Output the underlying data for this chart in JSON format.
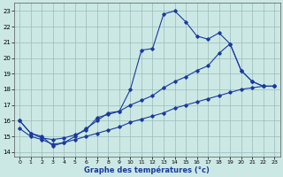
{
  "xlabel": "Graphe des températures (°c)",
  "background_color": "#cce8e4",
  "line_color": "#1a3a9e",
  "grid_color": "#99bbbb",
  "xlim": [
    -0.5,
    23.5
  ],
  "ylim": [
    13.7,
    23.5
  ],
  "xticks": [
    0,
    1,
    2,
    3,
    4,
    5,
    6,
    7,
    8,
    9,
    10,
    11,
    12,
    13,
    14,
    15,
    16,
    17,
    18,
    19,
    20,
    21,
    22,
    23
  ],
  "yticks": [
    14,
    15,
    16,
    17,
    18,
    19,
    20,
    21,
    22,
    23
  ],
  "series1_x": [
    0,
    1,
    2,
    3,
    4,
    5,
    6,
    7,
    8,
    9,
    10,
    11,
    12,
    13,
    14,
    15,
    16,
    17,
    18,
    19,
    20,
    21,
    22,
    23
  ],
  "series1_y": [
    16.0,
    15.2,
    15.0,
    14.4,
    14.6,
    15.0,
    15.5,
    16.0,
    16.5,
    16.6,
    18.0,
    20.5,
    20.6,
    22.8,
    23.0,
    22.3,
    21.4,
    21.2,
    21.6,
    20.9,
    19.2,
    18.5,
    18.2,
    18.2
  ],
  "series2_x": [
    0,
    1,
    2,
    3,
    4,
    5,
    6,
    7,
    8,
    9,
    10,
    11,
    12,
    13,
    14,
    15,
    16,
    17,
    18,
    19,
    20,
    21,
    22,
    23
  ],
  "series2_y": [
    16.0,
    15.2,
    14.9,
    14.8,
    14.9,
    15.1,
    15.4,
    16.2,
    16.4,
    16.6,
    17.0,
    17.3,
    17.6,
    18.1,
    18.5,
    18.8,
    19.2,
    19.5,
    20.3,
    20.9,
    19.2,
    18.5,
    18.2,
    18.2
  ],
  "series3_x": [
    0,
    1,
    2,
    3,
    4,
    5,
    6,
    7,
    8,
    9,
    10,
    11,
    12,
    13,
    14,
    15,
    16,
    17,
    18,
    19,
    20,
    21,
    22,
    23
  ],
  "series3_y": [
    15.5,
    15.0,
    14.8,
    14.5,
    14.6,
    14.8,
    15.0,
    15.2,
    15.4,
    15.6,
    15.9,
    16.1,
    16.3,
    16.5,
    16.8,
    17.0,
    17.2,
    17.4,
    17.6,
    17.8,
    18.0,
    18.1,
    18.2,
    18.2
  ]
}
